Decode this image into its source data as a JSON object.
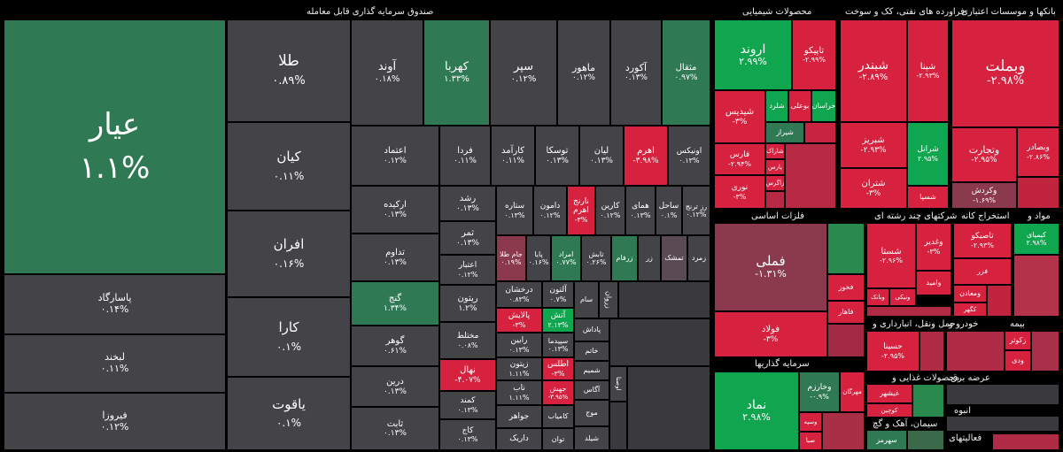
{
  "headers": {
    "etf": "صندوق سرمایه گذاری قابل معامله",
    "chem": "محصولات شیمیایی",
    "oil": "فراورده های نفتی، کک و سوخت",
    "banks": "بانکها و موسسات اعتباری",
    "metals": "فلزات اساسی",
    "multi": "شرکتهای چند رشته ای",
    "mine": "استخراج کانه",
    "mavad": "مواد و",
    "invest": "سرمایه گذاریها",
    "transport": "حمل ونقل، انبارداری و",
    "auto": "خودرو و",
    "insurance": "بیمه",
    "food": "محصولات غذایی و",
    "cement": "سیمان، آهک و گچ",
    "supply": "عرضه برق،",
    "anboh": "انبوه",
    "activity": "فعالیتهای"
  },
  "tiles": {
    "ayar": {
      "name": "عیار",
      "value": "۱.۱%"
    },
    "tala": {
      "name": "طلا",
      "value": "۰.۸۹%"
    },
    "kian": {
      "name": "کیان",
      "value": "۰.۱۱%"
    },
    "afran": {
      "name": "افران",
      "value": "۰.۱۶%"
    },
    "kara": {
      "name": "کارا",
      "value": "۰.۱%"
    },
    "yaqut": {
      "name": "یاقوت",
      "value": "۰.۱%"
    },
    "pasargad": {
      "name": "پاسارگاد",
      "value": "۰.۱۴%"
    },
    "lbkhand": {
      "name": "لبخند",
      "value": "۰.۱۱%"
    },
    "firuza": {
      "name": "فیروزا",
      "value": "۰.۱۲%"
    },
    "avand": {
      "name": "آوند",
      "value": "۰.۱۸%"
    },
    "kahroba": {
      "name": "کهربا",
      "value": "۱.۳۳%"
    },
    "separ": {
      "name": "سپر",
      "value": "۰.۱۲%"
    },
    "mahour": {
      "name": "ماهور",
      "value": "۰.۱۲%"
    },
    "akord": {
      "name": "آکورد",
      "value": "۰.۱۳%"
    },
    "mesqal": {
      "name": "مثقال",
      "value": "۰.۹۷%"
    },
    "etemad": {
      "name": "اعتماد",
      "value": "۰.۱۲%"
    },
    "fardā": {
      "name": "فردا",
      "value": "۰.۱۱%"
    },
    "karamad": {
      "name": "کارآمد",
      "value": "۰.۱۱%"
    },
    "tuska": {
      "name": "توسکا",
      "value": "۰.۱۳%"
    },
    "lian": {
      "name": "لیان",
      "value": "۰.۱۳%"
    },
    "ahram": {
      "name": "اهرم",
      "value": "-۳.۹۸%"
    },
    "onix": {
      "name": "اونیکس",
      "value": "۰.۱۳%"
    },
    "arkide": {
      "name": "ارکیده",
      "value": "۰.۱۳%"
    },
    "roshd": {
      "name": "رشد",
      "value": "۰.۱۳%"
    },
    "setare": {
      "name": "ستاره",
      "value": "۰.۱۳%"
    },
    "damun": {
      "name": "دامون",
      "value": "۰.۱۲%"
    },
    "naranj": {
      "name": "نارنج اهرم",
      "value": "-۳%"
    },
    "karin": {
      "name": "کارین",
      "value": "۰.۱۲%"
    },
    "homay": {
      "name": "همای",
      "value": "۰.۱۳%"
    },
    "sahel": {
      "name": "ساحل",
      "value": "۰.۱%"
    },
    "baztarnj": {
      "name": "رز ترنج",
      "value": "۰.۱۲%"
    },
    "afran2": {
      "name": "افران",
      "value": "۰.۱۶%"
    },
    "tadavom": {
      "name": "تداوم",
      "value": "۰.۱۳%"
    },
    "samar": {
      "name": "ثمر",
      "value": "۰.۱۳%"
    },
    "jamtala": {
      "name": "جام طلا",
      "value": "۰.۱۹%"
    },
    "paya": {
      "name": "پایا",
      "value": "۰.۱۶%"
    },
    "emrad": {
      "name": "امراد",
      "value": "۰.۷۷%"
    },
    "tabesh": {
      "name": "تابش",
      "value": "۰.۲۶%"
    },
    "zarfam": {
      "name": "زرفام",
      "value": ""
    },
    "zar": {
      "name": "زر",
      "value": ""
    },
    "tamashk": {
      "name": "تمشک",
      "value": ""
    },
    "zomorod": {
      "name": "زمرد",
      "value": ""
    },
    "etebar": {
      "name": "اعتبار",
      "value": "۰.۱۲%"
    },
    "gonj": {
      "name": "گنج",
      "value": "۱.۳۴%"
    },
    "ritun": {
      "name": "ریتون",
      "value": "۱.۲%"
    },
    "derakhshan": {
      "name": "درخشان",
      "value": "۰.۸۳%"
    },
    "altun": {
      "name": "آلتون",
      "value": "۰.۷%"
    },
    "zarvan": {
      "name": "زروان",
      "value": ""
    },
    "sam": {
      "name": "سام",
      "value": ""
    },
    "gohar": {
      "name": "گوهر",
      "value": "۰.۶۱%"
    },
    "mokhtalet": {
      "name": "مختلط",
      "value": "۰.۰۸%"
    },
    "palaiesh": {
      "name": "پالایش",
      "value": "-۳%"
    },
    "atash": {
      "name": "آتش",
      "value": "۲.۱۳%"
    },
    "padash": {
      "name": "پاداش",
      "value": ""
    },
    "rabin": {
      "name": "رابین",
      "value": "۰.۱۳%"
    },
    "sepidma": {
      "name": "سپیدما",
      "value": "۰.۱۳%"
    },
    "khatam": {
      "name": "خاتم",
      "value": ""
    },
    "nahal": {
      "name": "نهال",
      "value": "-۴.۰۷%"
    },
    "zitun": {
      "name": "زیتون",
      "value": "۱.۱۱%"
    },
    "atlas": {
      "name": "اطلس",
      "value": "-۳%"
    },
    "shamim": {
      "name": "شمیم",
      "value": ""
    },
    "durin": {
      "name": "درین",
      "value": "۰.۱۳%"
    },
    "kamand": {
      "name": "کمند",
      "value": "۰.۱۳%"
    },
    "nab": {
      "name": "ناب",
      "value": "۱.۱۱%"
    },
    "jahesh": {
      "name": "جهش",
      "value": "-۳.۹۵%"
    },
    "agas": {
      "name": "آگاس",
      "value": ""
    },
    "osta": {
      "name": "اوصتا",
      "value": ""
    },
    "sabet": {
      "name": "ثابت",
      "value": "۰.۱۳%"
    },
    "kaj": {
      "name": "کاج",
      "value": "۰.۱۳%"
    },
    "javaher": {
      "name": "جواهر",
      "value": ""
    },
    "kamiab": {
      "name": "کامیاب",
      "value": ""
    },
    "dariyk": {
      "name": "داریک",
      "value": ""
    },
    "tavan": {
      "name": "توان",
      "value": ""
    },
    "mowj": {
      "name": "موج",
      "value": ""
    },
    "shayvand": {
      "name": "شیلد",
      "value": ""
    },
    "arvand": {
      "name": "اروند",
      "value": "۲.۹۹%"
    },
    "tapiko": {
      "name": "تاپیکو",
      "value": "-۲.۹۹%"
    },
    "shadis": {
      "name": "شیدیس",
      "value": "-۳%"
    },
    "sharand": {
      "name": "شلرد",
      "value": ""
    },
    "buali": {
      "name": "بوعلی",
      "value": ""
    },
    "khorasan": {
      "name": "خراسان",
      "value": ""
    },
    "shiraz": {
      "name": "شیراز",
      "value": ""
    },
    "shark": {
      "name": "شاراک",
      "value": ""
    },
    "farsi": {
      "name": "فارس",
      "value": "-۲.۹۴%"
    },
    "pars": {
      "name": "پارس",
      "value": ""
    },
    "zagros": {
      "name": "زاگرس",
      "value": ""
    },
    "noori": {
      "name": "نوری",
      "value": "-۳%"
    },
    "shabandar": {
      "name": "شبندر",
      "value": "-۲.۸۹%"
    },
    "shapna": {
      "name": "شپنا",
      "value": "-۲.۹۳%"
    },
    "shebriz": {
      "name": "شبریز",
      "value": "-۲.۹۳%"
    },
    "shoranol": {
      "name": "شرانل",
      "value": "۲.۹۵%"
    },
    "shetran": {
      "name": "شتران",
      "value": "-۳%"
    },
    "shesepa": {
      "name": "شسپا",
      "value": ""
    },
    "vbemellat": {
      "name": "وبملت",
      "value": "-۲.۹۸%"
    },
    "vtejarat": {
      "name": "وتجارت",
      "value": "-۲.۹۵%"
    },
    "vbsader": {
      "name": "وبصادر",
      "value": "-۲.۸۶%"
    },
    "vkardan": {
      "name": "وکردش",
      "value": "-۱.۶۹%"
    },
    "femeli": {
      "name": "فملی",
      "value": "-۱.۳۱%"
    },
    "fkhuz": {
      "name": "فخوز",
      "value": ""
    },
    "folad": {
      "name": "فولاد",
      "value": "-۳%"
    },
    "fahar": {
      "name": "فاهار",
      "value": ""
    },
    "shasta": {
      "name": "شستا",
      "value": "-۲.۹۶%"
    },
    "vaghadir": {
      "name": "وغدیر",
      "value": "-۳%"
    },
    "vamid": {
      "name": "وامید",
      "value": ""
    },
    "vanik": {
      "name": "ونیکی",
      "value": ""
    },
    "vbank": {
      "name": "وبانک",
      "value": ""
    },
    "tapiko2": {
      "name": "تاصیکو",
      "value": "-۲.۹۳%"
    },
    "fazar": {
      "name": "فزر",
      "value": ""
    },
    "maadan": {
      "name": "ومعادن",
      "value": ""
    },
    "kagol": {
      "name": "کگهر",
      "value": ""
    },
    "kimiai": {
      "name": "کیمیای",
      "value": "۲.۹۸%"
    },
    "nomad": {
      "name": "نماد",
      "value": "۲.۹۸%"
    },
    "vkharazm": {
      "name": "وخارزم",
      "value": "-۰.۹%"
    },
    "vasa": {
      "name": "وسپه",
      "value": ""
    },
    "vsapa": {
      "name": "صبا",
      "value": ""
    },
    "mehregan": {
      "name": "مهرگان",
      "value": ""
    },
    "hasina": {
      "name": "حسینا",
      "value": "-۲.۹۵%"
    },
    "khazar": {
      "name": "غیشهر",
      "value": ""
    },
    "kuchin": {
      "name": "کوچین",
      "value": ""
    },
    "ketor": {
      "name": "زکوثر",
      "value": ""
    },
    "vdi": {
      "name": "ودی",
      "value": ""
    },
    "sehmeh": {
      "name": "سهرمز",
      "value": ""
    }
  }
}
